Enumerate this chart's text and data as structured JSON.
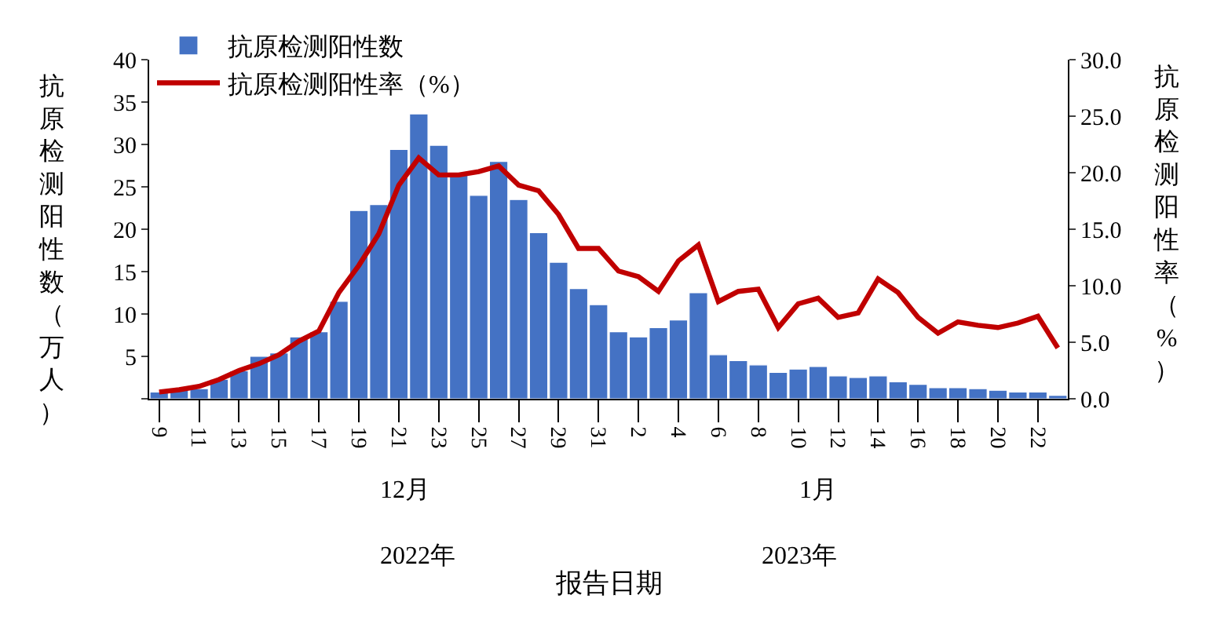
{
  "chart_data": {
    "type": "bar",
    "ylabel": "抗原检测阳性数（万人）",
    "y2label": "抗原检测阳性率（%）",
    "categories": [
      "9",
      null,
      "11",
      null,
      "13",
      null,
      "15",
      null,
      "17",
      null,
      "19",
      null,
      "21",
      null,
      "23",
      null,
      "25",
      null,
      "27",
      null,
      "29",
      null,
      "31",
      null,
      "2",
      null,
      "4",
      null,
      "6",
      null,
      "8",
      null,
      "10",
      null,
      "12",
      null,
      "14",
      null,
      "16",
      null,
      "18",
      null,
      "20",
      null,
      "22",
      null
    ],
    "series": [
      {
        "name": "抗原检测阳性数",
        "color": "#4472c4",
        "values": [
          0.8,
          1.0,
          1.2,
          2.3,
          3.3,
          5.0,
          5.4,
          7.3,
          7.9,
          11.5,
          22.2,
          22.9,
          29.4,
          33.6,
          29.9,
          26.6,
          24.0,
          28.0,
          23.5,
          19.6,
          16.1,
          13.0,
          11.1,
          7.9,
          7.3,
          8.4,
          9.3,
          12.5,
          5.2,
          4.5,
          4.0,
          3.1,
          3.5,
          3.8,
          2.7,
          2.5,
          2.7,
          2.0,
          1.7,
          1.3,
          1.3,
          1.2,
          1.0,
          0.8,
          0.8,
          0.4
        ]
      },
      {
        "name": "抗原检测阳性率（%）",
        "type": "line",
        "axis": "y2",
        "color": "#c00000",
        "values": [
          0.6,
          0.8,
          1.1,
          1.7,
          2.5,
          3.1,
          3.9,
          5.1,
          6.0,
          9.4,
          11.8,
          14.6,
          18.9,
          21.3,
          19.8,
          19.8,
          20.1,
          20.6,
          18.9,
          18.4,
          16.3,
          13.3,
          13.3,
          11.3,
          10.8,
          9.5,
          12.2,
          13.6,
          8.6,
          9.5,
          9.7,
          6.3,
          8.4,
          8.9,
          7.2,
          7.6,
          10.6,
          9.4,
          7.2,
          5.8,
          6.8,
          6.5,
          6.3,
          6.7,
          7.3,
          4.5
        ]
      }
    ],
    "ylim": [
      0,
      40
    ],
    "yticks": [
      {
        "value": 0,
        "label": null
      },
      5,
      10,
      15,
      20,
      25,
      30,
      35,
      40
    ],
    "y2lim": [
      0,
      30
    ],
    "y2ticks": [
      {
        "value": 0,
        "label": "0.0"
      },
      {
        "value": 5,
        "label": "5.0"
      },
      {
        "value": 10,
        "label": "10.0"
      },
      {
        "value": 15,
        "label": "15.0"
      },
      {
        "value": 20,
        "label": "20.0"
      },
      {
        "value": 25,
        "label": "25.0"
      },
      {
        "value": 30,
        "label": "30.0"
      }
    ],
    "annotations": [
      "12月",
      "1月",
      "2022年",
      "2023年",
      "报告日期"
    ],
    "legend": "top left",
    "marker": "none",
    "line_style": "solid"
  }
}
